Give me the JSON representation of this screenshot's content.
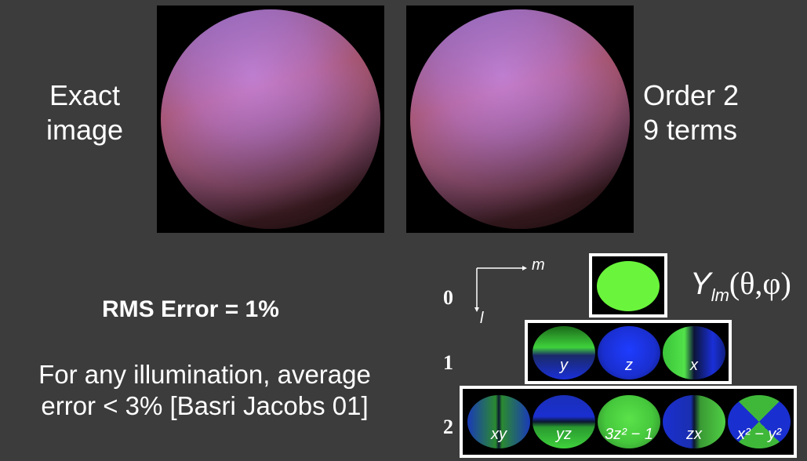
{
  "left_caption": {
    "line1": "Exact",
    "line2": "image"
  },
  "right_caption": {
    "line1": "Order 2",
    "line2": "9 terms"
  },
  "rms_text": "RMS Error = 1%",
  "note": {
    "line1": "For any illumination, average",
    "line2": "error < 3% [Basri Jacobs 01]"
  },
  "sh": {
    "axis_m": "m",
    "axis_l": "l",
    "ylm_symbol": "Y",
    "ylm_sub": "lm",
    "ylm_args": "(θ,φ)",
    "rows": [
      {
        "label": "0"
      },
      {
        "label": "1",
        "cells": [
          "y",
          "z",
          "x"
        ]
      },
      {
        "label": "2",
        "cells": [
          "xy",
          "yz",
          "3z² − 1",
          "zx",
          "x² − y²"
        ]
      }
    ]
  }
}
